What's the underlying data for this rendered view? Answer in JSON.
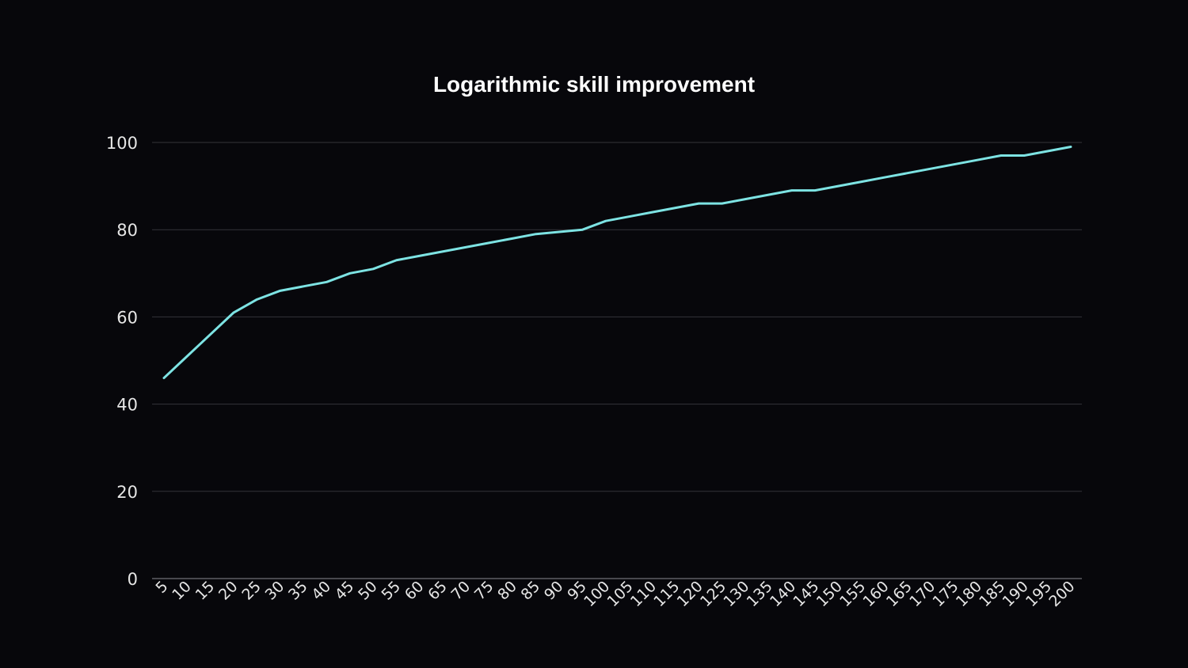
{
  "chart_data": {
    "type": "line",
    "title": "Logarithmic skill improvement",
    "xlabel": "",
    "ylabel": "",
    "categories": [
      "5",
      "10",
      "15",
      "20",
      "25",
      "30",
      "35",
      "40",
      "45",
      "50",
      "55",
      "60",
      "65",
      "70",
      "75",
      "80",
      "85",
      "90",
      "95",
      "100",
      "105",
      "110",
      "115",
      "120",
      "125",
      "130",
      "135",
      "140",
      "145",
      "150",
      "155",
      "160",
      "165",
      "170",
      "175",
      "180",
      "185",
      "190",
      "195",
      "200"
    ],
    "series": [
      {
        "values": [
          46,
          51,
          56,
          61,
          64,
          66,
          67,
          68,
          70,
          71,
          73,
          74,
          75,
          76,
          77,
          78,
          79,
          79.5,
          80,
          82,
          83,
          84,
          85,
          86,
          86,
          87,
          88,
          89,
          89,
          90,
          91,
          92,
          93,
          94,
          95,
          96,
          97,
          97,
          98,
          99
        ],
        "color": "#7de3e3"
      }
    ],
    "ylim": [
      0,
      100
    ],
    "yticks": [
      0,
      20,
      40,
      60,
      80,
      100
    ],
    "grid": true,
    "legend": "none"
  }
}
